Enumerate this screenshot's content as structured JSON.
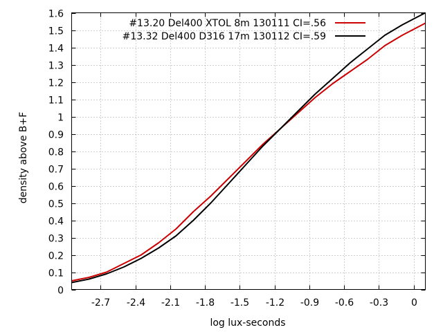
{
  "chart_data": {
    "type": "line",
    "title": "",
    "xlabel": "log lux-seconds",
    "ylabel": "density above B+F",
    "xlim": [
      -2.95,
      0.1
    ],
    "ylim": [
      0,
      1.6
    ],
    "x_ticks": [
      -2.7,
      -2.4,
      -2.1,
      -1.8,
      -1.5,
      -1.2,
      -0.9,
      -0.6,
      -0.3,
      0
    ],
    "x_tick_labels": [
      "-2.7",
      "-2.4",
      "-2.1",
      "-1.8",
      "-1.5",
      "-1.2",
      "-0.9",
      "-0.6",
      "-0.3",
      "0"
    ],
    "y_ticks": [
      0,
      0.1,
      0.2,
      0.3,
      0.4,
      0.5,
      0.6,
      0.7,
      0.8,
      0.9,
      1,
      1.1,
      1.2,
      1.3,
      1.4,
      1.5,
      1.6
    ],
    "y_tick_labels": [
      "0",
      "0.1",
      "0.2",
      "0.3",
      "0.4",
      "0.5",
      "0.6",
      "0.7",
      "0.8",
      "0.9",
      "1",
      "1.1",
      "1.2",
      "1.3",
      "1.4",
      "1.5",
      "1.6"
    ],
    "grid": true,
    "legend_position": "top-right",
    "series": [
      {
        "name": "#13.20 Del400 XTOL 8m 130111 CI=.56",
        "color": "#cc0000",
        "x": [
          -2.95,
          -2.8,
          -2.65,
          -2.5,
          -2.35,
          -2.2,
          -2.05,
          -1.9,
          -1.75,
          -1.6,
          -1.45,
          -1.3,
          -1.15,
          -1.0,
          -0.85,
          -0.7,
          -0.55,
          -0.4,
          -0.25,
          -0.1,
          0.1
        ],
        "y": [
          0.05,
          0.07,
          0.1,
          0.15,
          0.2,
          0.27,
          0.35,
          0.45,
          0.54,
          0.64,
          0.74,
          0.84,
          0.93,
          1.02,
          1.11,
          1.19,
          1.26,
          1.33,
          1.41,
          1.47,
          1.54
        ]
      },
      {
        "name": "#13.32 Del400 D316 17m 130112 CI=.59",
        "color": "#000000",
        "x": [
          -2.95,
          -2.8,
          -2.65,
          -2.5,
          -2.35,
          -2.2,
          -2.05,
          -1.9,
          -1.75,
          -1.6,
          -1.45,
          -1.3,
          -1.15,
          -1.0,
          -0.85,
          -0.7,
          -0.55,
          -0.4,
          -0.25,
          -0.1,
          0.1
        ],
        "y": [
          0.04,
          0.06,
          0.09,
          0.13,
          0.18,
          0.24,
          0.31,
          0.4,
          0.5,
          0.61,
          0.72,
          0.83,
          0.93,
          1.03,
          1.13,
          1.22,
          1.31,
          1.39,
          1.47,
          1.53,
          1.6
        ]
      }
    ]
  }
}
